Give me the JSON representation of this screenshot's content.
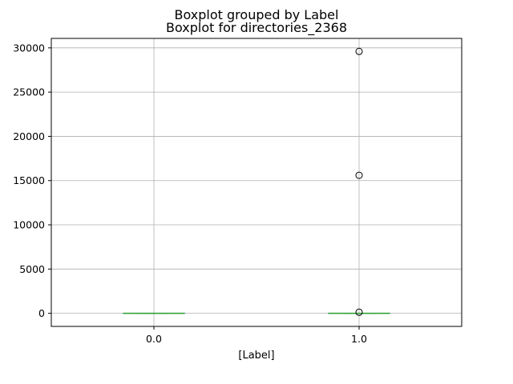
{
  "chart_data": {
    "type": "boxplot",
    "suptitle": "Boxplot grouped by Label",
    "title": "Boxplot for directories_2368",
    "xlabel": "[Label]",
    "ylabel": "",
    "categories": [
      "0.0",
      "1.0"
    ],
    "yticks": [
      0,
      5000,
      10000,
      15000,
      20000,
      25000,
      30000
    ],
    "ytick_labels": [
      "0",
      "5000",
      "10000",
      "15000",
      "20000",
      "25000",
      "30000"
    ],
    "ylim": [
      -1480,
      31070
    ],
    "grid": true,
    "boxes": [
      {
        "category": "0.0",
        "min": 0,
        "q1": 0,
        "median": 0,
        "q3": 0,
        "max": 0,
        "outliers": []
      },
      {
        "category": "1.0",
        "min": 0,
        "q1": 0,
        "median": 0,
        "q3": 0,
        "max": 0,
        "outliers": [
          120,
          15600,
          29600
        ]
      }
    ],
    "colors": {
      "box": "#1f77b4",
      "median": "#2ca02c",
      "grid": "#b0b0b0",
      "outlier_edge": "#000000"
    }
  }
}
